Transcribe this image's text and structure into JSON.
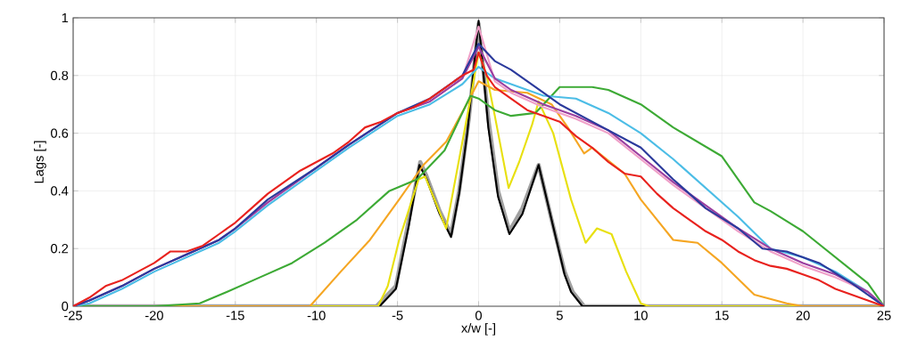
{
  "chart_data": {
    "type": "line",
    "xlabel": "x/w [-]",
    "ylabel": "Lags [-]",
    "xlim": [
      -25,
      25
    ],
    "ylim": [
      0,
      1
    ],
    "xticks": [
      -25,
      -20,
      -15,
      -10,
      -5,
      0,
      5,
      10,
      15,
      20,
      25
    ],
    "yticks": [
      0,
      0.2,
      0.4,
      0.6,
      0.8,
      1
    ],
    "grid": true,
    "marker": "none",
    "line_style": "solid",
    "series": [
      {
        "color": "#a0a0a0",
        "x": [
          -25,
          -6.3,
          -5.1,
          -4.3,
          -3.6,
          -3.2,
          -2.4,
          -1.7,
          -1.2,
          -0.6,
          0,
          0.6,
          1.2,
          1.9,
          2.7,
          3.7,
          4.5,
          5.3,
          5.8,
          6.5,
          25
        ],
        "values": [
          0,
          0,
          0.07,
          0.3,
          0.5,
          0.45,
          0.33,
          0.25,
          0.4,
          0.65,
          0.98,
          0.65,
          0.4,
          0.26,
          0.34,
          0.49,
          0.3,
          0.12,
          0.05,
          0,
          0
        ]
      },
      {
        "color": "#000000",
        "x": [
          -25,
          -6.1,
          -5.1,
          -4.3,
          -3.65,
          -3.2,
          -2.4,
          -1.7,
          -1.2,
          -0.7,
          0,
          0.6,
          1.2,
          1.9,
          2.7,
          3.7,
          4.5,
          5.3,
          5.7,
          6.4,
          25
        ],
        "values": [
          0,
          0,
          0.06,
          0.28,
          0.49,
          0.44,
          0.32,
          0.24,
          0.39,
          0.6,
          0.99,
          0.62,
          0.38,
          0.25,
          0.32,
          0.49,
          0.3,
          0.11,
          0.05,
          0,
          0
        ]
      },
      {
        "color": "#e8e010",
        "x": [
          -25,
          -6.2,
          -5.6,
          -4.9,
          -3.7,
          -3.3,
          -2.0,
          -0.5,
          0,
          0.5,
          1.0,
          1.85,
          2.5,
          3.3,
          3.7,
          4.6,
          5.7,
          6.6,
          7.3,
          8.2,
          9.1,
          10.0,
          10.5,
          25
        ],
        "values": [
          0,
          0,
          0.07,
          0.23,
          0.44,
          0.45,
          0.27,
          0.72,
          0.88,
          0.8,
          0.66,
          0.41,
          0.5,
          0.63,
          0.71,
          0.6,
          0.37,
          0.22,
          0.27,
          0.25,
          0.12,
          0.01,
          0,
          0
        ]
      },
      {
        "color": "#f5a623",
        "x": [
          -25,
          -10.4,
          -8.5,
          -6.7,
          -4.9,
          -3.4,
          -2.0,
          -0.55,
          0,
          1,
          3,
          4.5,
          5.5,
          6.5,
          7,
          9,
          10,
          12,
          13.5,
          15,
          17,
          19,
          20,
          25
        ],
        "values": [
          0,
          0,
          0.12,
          0.23,
          0.37,
          0.49,
          0.57,
          0.72,
          0.78,
          0.75,
          0.74,
          0.7,
          0.62,
          0.53,
          0.55,
          0.46,
          0.37,
          0.23,
          0.22,
          0.15,
          0.04,
          0.01,
          0,
          0
        ]
      },
      {
        "color": "#3daa35",
        "x": [
          -25,
          -20,
          -17.2,
          -15.5,
          -13.5,
          -11.5,
          -9.5,
          -7.5,
          -5.5,
          -3.8,
          -2.1,
          -0.5,
          0,
          1,
          2,
          3.5,
          5,
          7,
          8,
          10,
          12,
          15,
          17,
          18,
          20,
          22,
          24,
          25
        ],
        "values": [
          0,
          0,
          0.01,
          0.05,
          0.1,
          0.15,
          0.22,
          0.3,
          0.4,
          0.44,
          0.54,
          0.73,
          0.72,
          0.68,
          0.66,
          0.67,
          0.76,
          0.76,
          0.75,
          0.7,
          0.62,
          0.52,
          0.36,
          0.33,
          0.26,
          0.17,
          0.08,
          0
        ]
      },
      {
        "color": "#4cbde6",
        "x": [
          -25,
          -24,
          -22,
          -20,
          -18,
          -16,
          -15,
          -13,
          -10,
          -8,
          -5,
          -3,
          -1,
          0,
          1,
          2,
          4,
          6,
          8,
          10,
          12,
          14,
          16,
          18,
          20,
          22,
          24,
          25
        ],
        "values": [
          0,
          0.01,
          0.06,
          0.12,
          0.17,
          0.22,
          0.26,
          0.35,
          0.47,
          0.55,
          0.66,
          0.7,
          0.77,
          0.83,
          0.79,
          0.77,
          0.73,
          0.72,
          0.67,
          0.6,
          0.51,
          0.41,
          0.31,
          0.2,
          0.17,
          0.12,
          0.05,
          0
        ]
      },
      {
        "color": "#f0a0c8",
        "x": [
          -25,
          -24,
          -22,
          -20,
          -18,
          -16,
          -15,
          -13,
          -10,
          -8,
          -5,
          -3,
          -1,
          0,
          1,
          2,
          4,
          6,
          8,
          10,
          12,
          14,
          16,
          18,
          20,
          22,
          24,
          25
        ],
        "values": [
          0,
          0.02,
          0.07,
          0.13,
          0.18,
          0.23,
          0.27,
          0.36,
          0.48,
          0.56,
          0.67,
          0.71,
          0.79,
          0.97,
          0.78,
          0.74,
          0.69,
          0.65,
          0.6,
          0.51,
          0.42,
          0.34,
          0.26,
          0.19,
          0.14,
          0.1,
          0.05,
          0
        ]
      },
      {
        "color": "#9b3fa0",
        "x": [
          -25,
          -24,
          -22,
          -20,
          -18,
          -16,
          -15,
          -13,
          -10,
          -8,
          -5,
          -3,
          -1,
          0,
          1,
          2,
          4,
          6,
          8,
          10,
          12,
          14,
          16,
          18,
          20,
          22,
          24,
          25
        ],
        "values": [
          0,
          0.02,
          0.07,
          0.13,
          0.18,
          0.23,
          0.27,
          0.36,
          0.48,
          0.56,
          0.67,
          0.71,
          0.79,
          0.9,
          0.79,
          0.75,
          0.7,
          0.66,
          0.61,
          0.52,
          0.43,
          0.35,
          0.27,
          0.2,
          0.15,
          0.11,
          0.05,
          0
        ]
      },
      {
        "color": "#2b3a9c",
        "x": [
          -25,
          -24,
          -22,
          -20,
          -18,
          -16,
          -15,
          -13,
          -10,
          -8,
          -5,
          -3,
          -1,
          0,
          1,
          2,
          4,
          5,
          7,
          10,
          12,
          14,
          16,
          17.5,
          19,
          21,
          23,
          25
        ],
        "values": [
          0,
          0.02,
          0.07,
          0.13,
          0.18,
          0.23,
          0.27,
          0.37,
          0.48,
          0.56,
          0.67,
          0.72,
          0.8,
          0.91,
          0.85,
          0.82,
          0.74,
          0.7,
          0.64,
          0.55,
          0.44,
          0.34,
          0.27,
          0.2,
          0.19,
          0.15,
          0.08,
          0
        ]
      },
      {
        "color": "#e8221e",
        "x": [
          -25,
          -24,
          -23,
          -22,
          -21,
          -20,
          -19,
          -18,
          -17,
          -16,
          -15,
          -14,
          -13,
          -12,
          -11,
          -10,
          -9,
          -8,
          -7,
          -6,
          -5,
          -4,
          -3,
          -2,
          -1,
          -0.3,
          0,
          0.5,
          1,
          2,
          3,
          4,
          5,
          6,
          7,
          8,
          9,
          10,
          11,
          12,
          13,
          14,
          15,
          16,
          17,
          18,
          19,
          20,
          21,
          22,
          23,
          24,
          25
        ],
        "values": [
          0,
          0.03,
          0.07,
          0.09,
          0.12,
          0.15,
          0.19,
          0.19,
          0.21,
          0.25,
          0.29,
          0.34,
          0.39,
          0.43,
          0.47,
          0.5,
          0.53,
          0.57,
          0.62,
          0.64,
          0.67,
          0.69,
          0.72,
          0.76,
          0.8,
          0.82,
          0.88,
          0.8,
          0.76,
          0.72,
          0.68,
          0.66,
          0.64,
          0.59,
          0.55,
          0.5,
          0.46,
          0.45,
          0.39,
          0.34,
          0.3,
          0.26,
          0.23,
          0.19,
          0.16,
          0.14,
          0.13,
          0.11,
          0.09,
          0.06,
          0.04,
          0.02,
          0
        ]
      }
    ]
  }
}
